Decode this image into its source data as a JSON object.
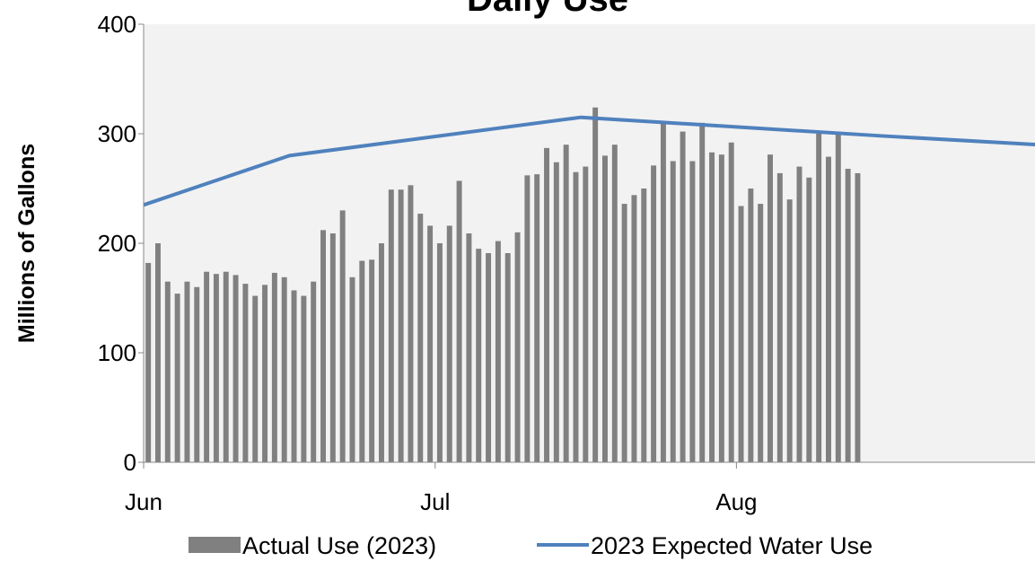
{
  "chart_data": {
    "type": "bar-line",
    "title": "Daily Use",
    "y_label": "Millions of Gallons",
    "xlim": [
      0,
      92
    ],
    "xticks": [
      {
        "value": 0,
        "label": "Jun"
      },
      {
        "value": 30,
        "label": "Jul"
      },
      {
        "value": 61,
        "label": "Aug"
      }
    ],
    "ylim": [
      0,
      400
    ],
    "yticks": [
      0,
      100,
      200,
      300,
      400
    ],
    "series": [
      {
        "name": "Actual Use (2023)",
        "type": "bar",
        "color": "#808080",
        "x": [
          0,
          1,
          2,
          3,
          4,
          5,
          6,
          7,
          8,
          9,
          10,
          11,
          12,
          13,
          14,
          15,
          16,
          17,
          18,
          19,
          20,
          21,
          22,
          23,
          24,
          25,
          26,
          27,
          28,
          29,
          30,
          31,
          32,
          33,
          34,
          35,
          36,
          37,
          38,
          39,
          40,
          41,
          42,
          43,
          44,
          45,
          46,
          47,
          48,
          49,
          50,
          51,
          52,
          53,
          54,
          55,
          56,
          57,
          58,
          59,
          60,
          61,
          62,
          63,
          64,
          65,
          66,
          67,
          68,
          69,
          70,
          71,
          72,
          73
        ],
        "values": [
          182,
          200,
          165,
          154,
          165,
          160,
          174,
          172,
          174,
          171,
          163,
          152,
          162,
          173,
          169,
          157,
          152,
          165,
          212,
          209,
          230,
          169,
          184,
          185,
          200,
          249,
          249,
          253,
          227,
          216,
          200,
          216,
          257,
          209,
          195,
          191,
          202,
          191,
          210,
          262,
          263,
          287,
          274,
          290,
          265,
          270,
          324,
          280,
          290,
          236,
          244,
          250,
          271,
          310,
          275,
          302,
          275,
          310,
          283,
          281,
          292,
          234,
          250,
          236,
          281,
          264,
          240,
          270,
          260,
          300,
          279,
          300,
          268,
          264
        ]
      },
      {
        "name": "2023 Expected Water Use",
        "type": "line",
        "color": "#4f81bd",
        "x": [
          0,
          15,
          45,
          76,
          92
        ],
        "values": [
          235,
          280,
          315,
          298,
          290
        ]
      }
    ],
    "legend": "bottom"
  }
}
